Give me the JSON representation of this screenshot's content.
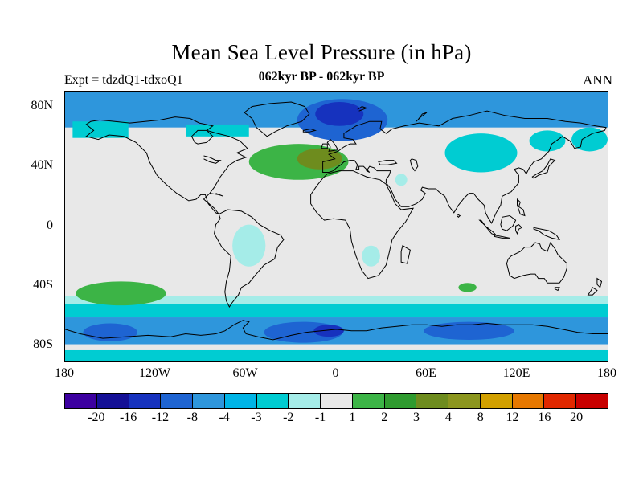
{
  "header": {
    "title": "Mean Sea Level Pressure (in hPa)",
    "subtitle": "062kyr BP - 062kyr BP",
    "experiment_label": "Expt = tdzdQ1-tdxoQ1",
    "season_label": "ANN"
  },
  "axes": {
    "lat_ticks": [
      {
        "label": "80N",
        "lat": 80
      },
      {
        "label": "40N",
        "lat": 40
      },
      {
        "label": "0",
        "lat": 0
      },
      {
        "label": "40S",
        "lat": -40
      },
      {
        "label": "80S",
        "lat": -80
      }
    ],
    "lon_ticks": [
      {
        "label": "180",
        "lon": -180
      },
      {
        "label": "120W",
        "lon": -120
      },
      {
        "label": "60W",
        "lon": -60
      },
      {
        "label": "0",
        "lon": 0
      },
      {
        "label": "60E",
        "lon": 60
      },
      {
        "label": "120E",
        "lon": 120
      },
      {
        "label": "180",
        "lon": 180
      }
    ]
  },
  "chart_data": {
    "type": "heatmap",
    "subtype": "filled-contour-map",
    "title": "Mean Sea Level Pressure (in hPa)",
    "subtitle": "062kyr BP - 062kyr BP",
    "experiment": "tdzdQ1-tdxoQ1",
    "season": "ANN",
    "units": "hPa",
    "projection": "equirectangular",
    "lon_range": [
      -180,
      180
    ],
    "lat_range": [
      -90,
      90
    ],
    "levels": [
      -20,
      -16,
      -12,
      -8,
      -4,
      -3,
      -2,
      -1,
      1,
      2,
      3,
      4,
      8,
      12,
      16,
      20
    ],
    "colors": [
      "#3c00a0",
      "#141096",
      "#1632be",
      "#1e64d2",
      "#2e96dc",
      "#00b4e6",
      "#00ccd2",
      "#a5ece8",
      "#e8e8e8",
      "#3cb446",
      "#2f9b2f",
      "#6e8c1e",
      "#8c961e",
      "#d2a000",
      "#e67800",
      "#e12800",
      "#c80000"
    ],
    "background_value": 0,
    "regions": [
      {
        "name": "southern-midlat-pale-band",
        "shape": "rect",
        "lon": [
          -180,
          180
        ],
        "lat": [
          -52,
          -47
        ],
        "value": -1.5
      },
      {
        "name": "southern-ocean-cyan-band",
        "shape": "rect",
        "lon": [
          -180,
          180
        ],
        "lat": [
          -61,
          -52
        ],
        "value": -2.5
      },
      {
        "name": "antarctic-blue-band",
        "shape": "rect",
        "lon": [
          -180,
          180
        ],
        "lat": [
          -79,
          -61
        ],
        "value": -6
      },
      {
        "name": "antarctic-low-pacific",
        "shape": "ellipse",
        "lon": -150,
        "lat": -71,
        "rlon": 18,
        "rlat": 6,
        "value": -9
      },
      {
        "name": "antarctic-low-atlantic",
        "shape": "ellipse",
        "lon": -22,
        "lat": -71,
        "rlon": 26,
        "rlat": 7,
        "value": -9
      },
      {
        "name": "antarctic-low-atlantic-core",
        "shape": "ellipse",
        "lon": -5,
        "lat": -70,
        "rlon": 10,
        "rlat": 4,
        "value": -13
      },
      {
        "name": "antarctic-low-indian",
        "shape": "ellipse",
        "lon": 88,
        "lat": -70,
        "rlon": 30,
        "rlat": 6,
        "value": -9
      },
      {
        "name": "south-pole-strip",
        "shape": "rect",
        "lon": [
          -180,
          180
        ],
        "lat": [
          -90,
          -83
        ],
        "value": -2.5
      },
      {
        "name": "arctic-blue-band",
        "shape": "rect",
        "lon": [
          -180,
          180
        ],
        "lat": [
          66,
          90
        ],
        "value": -6
      },
      {
        "name": "alaska-cyan-patch",
        "shape": "rect",
        "lon": [
          -175,
          -138
        ],
        "lat": [
          59,
          70
        ],
        "value": -2.5
      },
      {
        "name": "hudson-cyan-patch",
        "shape": "rect",
        "lon": [
          -100,
          -58
        ],
        "lat": [
          60,
          68
        ],
        "value": -2.5
      },
      {
        "name": "central-asia-cyan-patch",
        "shape": "ellipse",
        "lon": 96,
        "lat": 49,
        "rlon": 24,
        "rlat": 13,
        "value": -2.5
      },
      {
        "name": "east-siberia-cyan-patch",
        "shape": "ellipse",
        "lon": 140,
        "lat": 57,
        "rlon": 12,
        "rlat": 7,
        "value": -2.5
      },
      {
        "name": "okhotsk-cyan-patch",
        "shape": "ellipse",
        "lon": 168,
        "lat": 58,
        "rlon": 12,
        "rlat": 8,
        "value": -2.5
      },
      {
        "name": "nordic-deep-low",
        "shape": "ellipse",
        "lon": 4,
        "lat": 71,
        "rlon": 30,
        "rlat": 14,
        "value": -9
      },
      {
        "name": "nordic-deep-low-core",
        "shape": "ellipse",
        "lon": 2,
        "lat": 75,
        "rlon": 16,
        "rlat": 8,
        "value": -14
      },
      {
        "name": "south-america-pale-patch",
        "shape": "ellipse",
        "lon": -58,
        "lat": -13,
        "rlon": 11,
        "rlat": 14,
        "value": -1.5
      },
      {
        "name": "south-africa-pale-patch",
        "shape": "ellipse",
        "lon": 23,
        "lat": -20,
        "rlon": 6,
        "rlat": 7,
        "value": -1.5
      },
      {
        "name": "mideast-pale-patch",
        "shape": "ellipse",
        "lon": 43,
        "lat": 31,
        "rlon": 4,
        "rlat": 4,
        "value": -1.5
      },
      {
        "name": "north-atlantic-high",
        "shape": "ellipse",
        "lon": -25,
        "lat": 43,
        "rlon": 33,
        "rlat": 12,
        "value": 1.5
      },
      {
        "name": "north-atlantic-high-core",
        "shape": "ellipse",
        "lon": -11,
        "lat": 45,
        "rlon": 15,
        "rlat": 7,
        "value": 3.5
      },
      {
        "name": "south-pacific-high",
        "shape": "ellipse",
        "lon": -143,
        "lat": -45,
        "rlon": 30,
        "rlat": 8,
        "value": 1.5
      },
      {
        "name": "south-indian-high-spot",
        "shape": "ellipse",
        "lon": 87,
        "lat": -41,
        "rlon": 6,
        "rlat": 3,
        "value": 1.5
      }
    ],
    "legend_position": "bottom",
    "grid": false
  }
}
